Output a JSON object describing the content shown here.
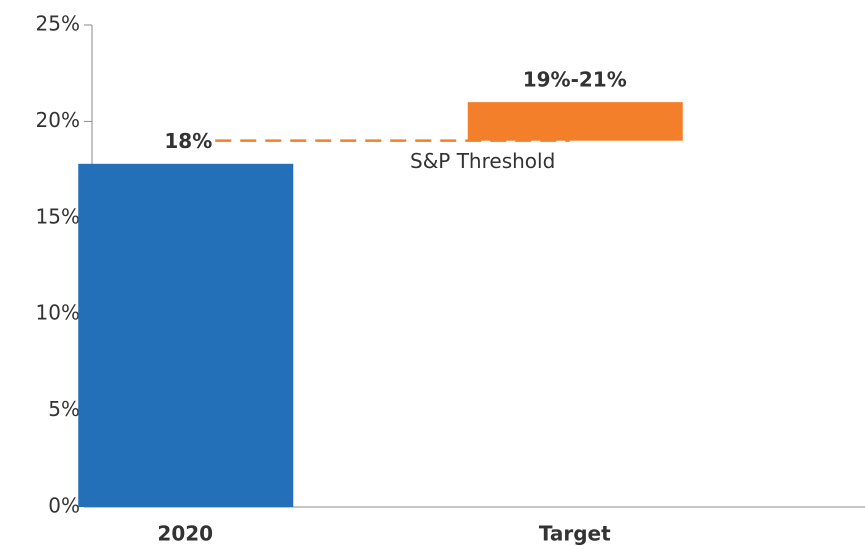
{
  "chart_data": {
    "type": "range_bar",
    "categories": [
      "2020",
      "Target"
    ],
    "values": [
      17.8,
      21
    ],
    "bases": [
      0,
      19
    ],
    "value_labels": [
      "18%",
      "19%-21%"
    ],
    "colors": [
      "#2370b8",
      "#f47f2a"
    ],
    "threshold": {
      "label": "S&P Threshold",
      "value": 19,
      "color": "#f47f2a"
    },
    "ylim": [
      0,
      25
    ],
    "yticks": [
      {
        "value": 0,
        "label": "0%"
      },
      {
        "value": 5,
        "label": "5%"
      },
      {
        "value": 10,
        "label": "10%"
      },
      {
        "value": 15,
        "label": "15%"
      },
      {
        "value": 20,
        "label": "20%"
      },
      {
        "value": 25,
        "label": "25%"
      }
    ],
    "grid": false
  }
}
